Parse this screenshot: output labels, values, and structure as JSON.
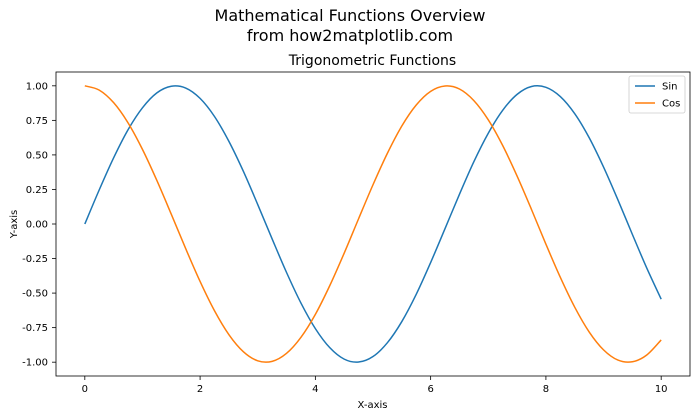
{
  "figure": {
    "title_line1": "Mathematical Functions Overview",
    "title_line2": "from how2matplotlib.com"
  },
  "colors": {
    "sin": "#1f77b4",
    "cos": "#ff7f0e",
    "axes": "#000000",
    "background": "#ffffff"
  },
  "chart_data": {
    "type": "line",
    "title": "Trigonometric Functions",
    "xlabel": "X-axis",
    "ylabel": "Y-axis",
    "xlim": [
      -0.5,
      10.5
    ],
    "ylim": [
      -1.1,
      1.1
    ],
    "xticks": [
      0,
      2,
      4,
      6,
      8,
      10
    ],
    "xtick_labels": [
      "0",
      "2",
      "4",
      "6",
      "8",
      "10"
    ],
    "yticks": [
      1.0,
      0.75,
      0.5,
      0.25,
      0.0,
      -0.25,
      -0.5,
      -0.75,
      -1.0
    ],
    "ytick_labels": [
      "1.00",
      "0.75",
      "0.50",
      "0.25",
      "0.00",
      "-0.25",
      "-0.50",
      "-0.75",
      "-1.00"
    ],
    "grid": false,
    "legend_position": "top-right",
    "series": [
      {
        "name": "Sin",
        "color": "#1f77b4",
        "x": [
          0,
          0.25,
          0.5,
          0.75,
          1.0,
          1.25,
          1.5,
          1.75,
          2.0,
          2.25,
          2.5,
          2.75,
          3.0,
          3.25,
          3.5,
          3.75,
          4.0,
          4.25,
          4.5,
          4.75,
          5.0,
          5.25,
          5.5,
          5.75,
          6.0,
          6.25,
          6.5,
          6.75,
          7.0,
          7.25,
          7.5,
          7.75,
          8.0,
          8.25,
          8.5,
          8.75,
          9.0,
          9.25,
          9.5,
          9.75,
          10.0
        ],
        "y": [
          0.0,
          0.247,
          0.479,
          0.682,
          0.841,
          0.949,
          0.997,
          0.984,
          0.909,
          0.778,
          0.598,
          0.382,
          0.141,
          -0.108,
          -0.351,
          -0.572,
          -0.757,
          -0.895,
          -0.978,
          -0.999,
          -0.959,
          -0.859,
          -0.706,
          -0.509,
          -0.279,
          -0.033,
          0.215,
          0.451,
          0.657,
          0.823,
          0.938,
          0.995,
          0.989,
          0.922,
          0.798,
          0.625,
          0.412,
          0.174,
          -0.075,
          -0.319,
          -0.544
        ]
      },
      {
        "name": "Cos",
        "color": "#ff7f0e",
        "x": [
          0,
          0.25,
          0.5,
          0.75,
          1.0,
          1.25,
          1.5,
          1.75,
          2.0,
          2.25,
          2.5,
          2.75,
          3.0,
          3.25,
          3.5,
          3.75,
          4.0,
          4.25,
          4.5,
          4.75,
          5.0,
          5.25,
          5.5,
          5.75,
          6.0,
          6.25,
          6.5,
          6.75,
          7.0,
          7.25,
          7.5,
          7.75,
          8.0,
          8.25,
          8.5,
          8.75,
          9.0,
          9.25,
          9.5,
          9.75,
          10.0
        ],
        "y": [
          1.0,
          0.969,
          0.878,
          0.732,
          0.54,
          0.315,
          0.071,
          -0.178,
          -0.416,
          -0.628,
          -0.801,
          -0.924,
          -0.99,
          -0.994,
          -0.936,
          -0.82,
          -0.654,
          -0.446,
          -0.211,
          0.038,
          0.284,
          0.512,
          0.709,
          0.861,
          0.96,
          0.999,
          0.977,
          0.893,
          0.754,
          0.568,
          0.347,
          0.105,
          -0.146,
          -0.386,
          -0.602,
          -0.781,
          -0.911,
          -0.985,
          -0.997,
          -0.948,
          -0.839
        ]
      }
    ]
  }
}
